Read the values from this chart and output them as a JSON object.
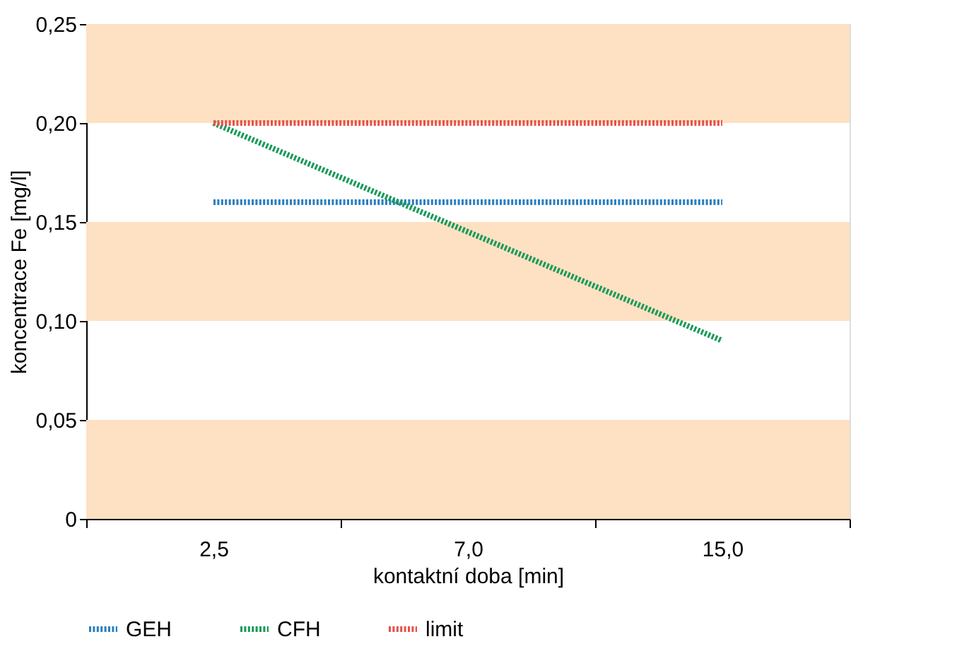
{
  "chart_data": {
    "type": "line",
    "xlabel": "kontaktní doba [min]",
    "ylabel": "koncentrace Fe [mg/l]",
    "categories": [
      "2,5",
      "7,0",
      "15,0"
    ],
    "series": [
      {
        "name": "GEH",
        "color": "#2a7fc1",
        "values": [
          0.16,
          0.16,
          0.16
        ]
      },
      {
        "name": "CFH",
        "color": "#1a9a5a",
        "values": [
          0.2,
          0.145,
          0.09
        ]
      },
      {
        "name": "limit",
        "color": "#e8524a",
        "values": [
          0.2,
          0.2,
          0.2
        ]
      }
    ],
    "ylim": [
      0,
      0.25
    ],
    "yticks": [
      {
        "value": 0,
        "label": "0"
      },
      {
        "value": 0.05,
        "label": "0,05"
      },
      {
        "value": 0.1,
        "label": "0,10"
      },
      {
        "value": 0.15,
        "label": "0,15"
      },
      {
        "value": 0.2,
        "label": "0,20"
      },
      {
        "value": 0.25,
        "label": "0,25"
      }
    ],
    "bands": [
      {
        "axis": "y",
        "from": 0,
        "to": 0.05,
        "color": "#fde1c2"
      },
      {
        "axis": "y",
        "from": 0.1,
        "to": 0.15,
        "color": "#fde1c2"
      },
      {
        "axis": "y",
        "from": 0.2,
        "to": 0.25,
        "color": "#fde1c2"
      }
    ],
    "grid": false,
    "legend": "bottom",
    "line_style": "dotted",
    "marker": "none"
  }
}
